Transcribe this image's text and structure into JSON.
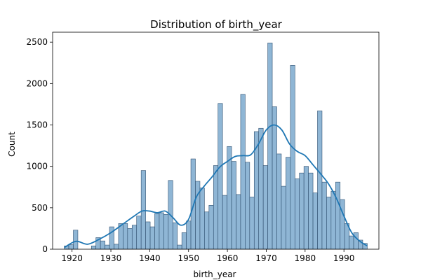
{
  "chart_data": {
    "type": "bar",
    "subtype": "histogram-with-kde",
    "title": "Distribution of birth_year",
    "xlabel": "birth_year",
    "ylabel": "Count",
    "xlim": [
      1915,
      1999
    ],
    "ylim": [
      0,
      2620
    ],
    "x_ticks": [
      1920,
      1930,
      1940,
      1950,
      1960,
      1970,
      1980,
      1990
    ],
    "y_ticks": [
      0,
      500,
      1000,
      1500,
      2000,
      2500
    ],
    "grid": false,
    "legend": "none",
    "colors": {
      "bar_fill": "#8fb6d5",
      "bar_edge": "#2f4f6f",
      "kde_line": "#1f77b4",
      "axis": "#000000"
    },
    "bin_edges_start": 1918,
    "bin_edges_end": 1996,
    "counts": [
      40,
      55,
      230,
      0,
      0,
      0,
      40,
      140,
      100,
      50,
      270,
      60,
      310,
      310,
      250,
      290,
      400,
      950,
      330,
      270,
      430,
      440,
      420,
      830,
      320,
      50,
      200,
      340,
      1090,
      820,
      740,
      450,
      530,
      1010,
      1760,
      650,
      1240,
      1060,
      660,
      1870,
      1050,
      630,
      1420,
      1460,
      1010,
      2490,
      1720,
      1150,
      760,
      1110,
      2220,
      850,
      920,
      1000,
      920,
      680,
      1670,
      810,
      630,
      700,
      810,
      600,
      310,
      160,
      200,
      110,
      70
    ],
    "kde": {
      "x": [
        1918,
        1921,
        1924,
        1927,
        1930,
        1933,
        1936,
        1938,
        1940,
        1942,
        1944,
        1946,
        1948,
        1950,
        1952,
        1954,
        1956,
        1958,
        1960,
        1962,
        1964,
        1966,
        1968,
        1970,
        1972,
        1974,
        1976,
        1978,
        1980,
        1982,
        1984,
        1986,
        1988,
        1990,
        1992,
        1994,
        1996
      ],
      "y": [
        20,
        95,
        60,
        120,
        200,
        300,
        400,
        460,
        460,
        440,
        460,
        380,
        290,
        360,
        630,
        760,
        870,
        990,
        1060,
        1120,
        1130,
        1140,
        1270,
        1440,
        1500,
        1440,
        1270,
        1180,
        1130,
        1020,
        910,
        790,
        620,
        400,
        200,
        100,
        40
      ]
    }
  }
}
